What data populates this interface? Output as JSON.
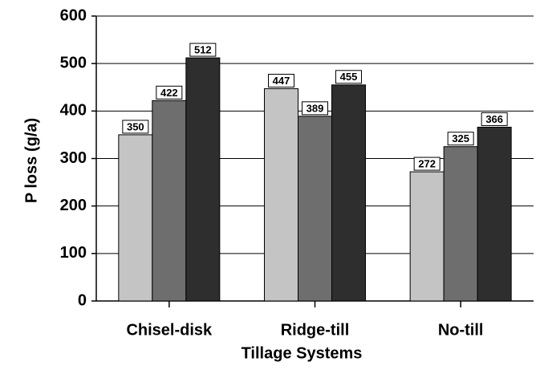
{
  "chart_data": {
    "type": "bar",
    "categories": [
      "Chisel-disk",
      "Ridge-till",
      "No-till"
    ],
    "series": [
      {
        "color": "#c4c4c4",
        "values": [
          350,
          447,
          272
        ]
      },
      {
        "color": "#6e6e6e",
        "values": [
          422,
          389,
          325
        ]
      },
      {
        "color": "#2e2e2e",
        "values": [
          512,
          455,
          366
        ]
      }
    ],
    "xlabel": "Tillage  Systems",
    "ylabel": "P loss (g/a)",
    "ylim": [
      0,
      600
    ],
    "yticks": [
      0,
      100,
      200,
      300,
      400,
      500,
      600
    ],
    "grid": true
  }
}
